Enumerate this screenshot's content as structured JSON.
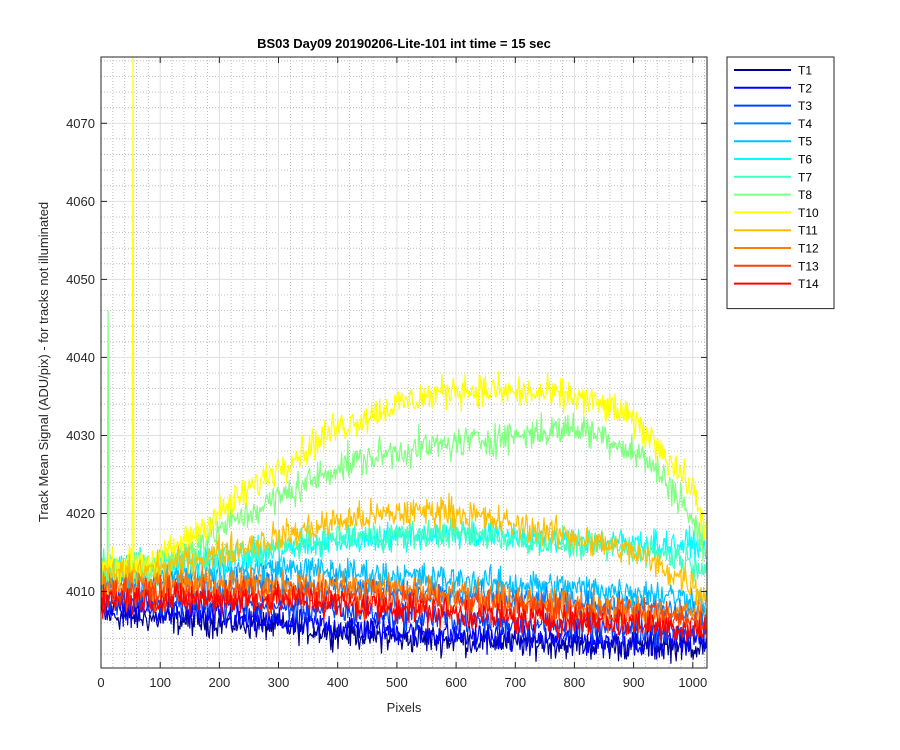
{
  "chart_data": {
    "type": "line",
    "title": "BS03 Day09 20190206-Lite-101 int time = 15 sec",
    "xlabel": "Pixels",
    "ylabel": "Track Mean Signal (ADU/pix) - for tracks not illuminated",
    "xlim": [
      0,
      1024
    ],
    "ylim": [
      4000.2,
      4078.5
    ],
    "x_ticks": [
      0,
      100,
      200,
      300,
      400,
      500,
      600,
      700,
      800,
      900,
      1000
    ],
    "y_ticks": [
      4010,
      4020,
      4030,
      4040,
      4050,
      4060,
      4070
    ],
    "grid": true,
    "minor_grid": true,
    "legend_position": "outside-top-right",
    "series": [
      {
        "name": "T1",
        "color": "#00008f",
        "profile": [
          [
            0,
            4007
          ],
          [
            300,
            4005.5
          ],
          [
            500,
            4004
          ],
          [
            700,
            4003.5
          ],
          [
            900,
            4003
          ],
          [
            1024,
            4003
          ]
        ],
        "noise": 1.3
      },
      {
        "name": "T2",
        "color": "#0000ff",
        "profile": [
          [
            0,
            4008
          ],
          [
            300,
            4006
          ],
          [
            500,
            4005
          ],
          [
            700,
            4004
          ],
          [
            900,
            4003.5
          ],
          [
            1024,
            4004
          ]
        ],
        "noise": 1.3
      },
      {
        "name": "T3",
        "color": "#0040ff",
        "profile": [
          [
            0,
            4009
          ],
          [
            300,
            4008
          ],
          [
            500,
            4007
          ],
          [
            700,
            4006
          ],
          [
            900,
            4005
          ],
          [
            1024,
            4005
          ]
        ],
        "noise": 1.3
      },
      {
        "name": "T4",
        "color": "#0080ff",
        "profile": [
          [
            0,
            4011
          ],
          [
            300,
            4011
          ],
          [
            500,
            4010
          ],
          [
            700,
            4009
          ],
          [
            900,
            4008
          ],
          [
            1024,
            4007
          ]
        ],
        "noise": 1.3
      },
      {
        "name": "T5",
        "color": "#00bfff",
        "profile": [
          [
            0,
            4012
          ],
          [
            300,
            4013
          ],
          [
            500,
            4012
          ],
          [
            700,
            4011
          ],
          [
            900,
            4010
          ],
          [
            1024,
            4009
          ]
        ],
        "noise": 1.3
      },
      {
        "name": "T6",
        "color": "#00ffff",
        "profile": [
          [
            0,
            4013
          ],
          [
            200,
            4014
          ],
          [
            400,
            4016.5
          ],
          [
            600,
            4017.5
          ],
          [
            800,
            4016.5
          ],
          [
            950,
            4016
          ],
          [
            1024,
            4016
          ]
        ],
        "noise": 1.3
      },
      {
        "name": "T7",
        "color": "#40ffbf",
        "profile": [
          [
            0,
            4013
          ],
          [
            200,
            4014.5
          ],
          [
            400,
            4017
          ],
          [
            600,
            4017.5
          ],
          [
            800,
            4016
          ],
          [
            950,
            4015
          ],
          [
            1024,
            4013
          ]
        ],
        "noise": 1.3
      },
      {
        "name": "T8",
        "color": "#80ff80",
        "profile": [
          [
            0,
            4012
          ],
          [
            100,
            4013
          ],
          [
            200,
            4018
          ],
          [
            300,
            4022
          ],
          [
            400,
            4026
          ],
          [
            500,
            4028
          ],
          [
            600,
            4029
          ],
          [
            700,
            4030
          ],
          [
            800,
            4031
          ],
          [
            850,
            4030
          ],
          [
            920,
            4027
          ],
          [
            980,
            4022
          ],
          [
            1024,
            4015
          ]
        ],
        "noise": 1.5
      },
      {
        "name": "T10",
        "color": "#ffff00",
        "profile": [
          [
            0,
            4013
          ],
          [
            100,
            4014
          ],
          [
            200,
            4020
          ],
          [
            300,
            4026
          ],
          [
            400,
            4031
          ],
          [
            500,
            4034
          ],
          [
            600,
            4036
          ],
          [
            700,
            4035.5
          ],
          [
            800,
            4035
          ],
          [
            880,
            4033
          ],
          [
            940,
            4029
          ],
          [
            1000,
            4023
          ],
          [
            1024,
            4018
          ]
        ],
        "noise": 1.5
      },
      {
        "name": "T11",
        "color": "#ffbf00",
        "profile": [
          [
            0,
            4012
          ],
          [
            100,
            4013
          ],
          [
            200,
            4015
          ],
          [
            300,
            4017
          ],
          [
            400,
            4019
          ],
          [
            500,
            4020
          ],
          [
            580,
            4020.5
          ],
          [
            700,
            4018.5
          ],
          [
            800,
            4017
          ],
          [
            900,
            4015
          ],
          [
            1000,
            4011
          ],
          [
            1024,
            4009
          ]
        ],
        "noise": 1.4
      },
      {
        "name": "T12",
        "color": "#ff8000",
        "profile": [
          [
            0,
            4011
          ],
          [
            300,
            4011
          ],
          [
            500,
            4010.5
          ],
          [
            700,
            4009
          ],
          [
            900,
            4007.5
          ],
          [
            1024,
            4007
          ]
        ],
        "noise": 1.4
      },
      {
        "name": "T13",
        "color": "#ff4000",
        "profile": [
          [
            0,
            4010
          ],
          [
            300,
            4009.5
          ],
          [
            500,
            4009
          ],
          [
            700,
            4008
          ],
          [
            900,
            4007
          ],
          [
            1024,
            4006
          ]
        ],
        "noise": 1.4
      },
      {
        "name": "T14",
        "color": "#ff0000",
        "profile": [
          [
            0,
            4009
          ],
          [
            300,
            4009
          ],
          [
            500,
            4008
          ],
          [
            700,
            4006.5
          ],
          [
            900,
            4006
          ],
          [
            1024,
            4005
          ]
        ],
        "noise": 1.4
      }
    ],
    "spikes": [
      {
        "series": "T8",
        "x": 12,
        "y": 4046
      },
      {
        "series": "T10",
        "x": 54,
        "y": 4078.5
      }
    ]
  },
  "colors": {
    "background": "#ffffff",
    "axis": "#262626",
    "grid_major": "#dfdfdf",
    "grid_minor": "#b0b0b0"
  }
}
